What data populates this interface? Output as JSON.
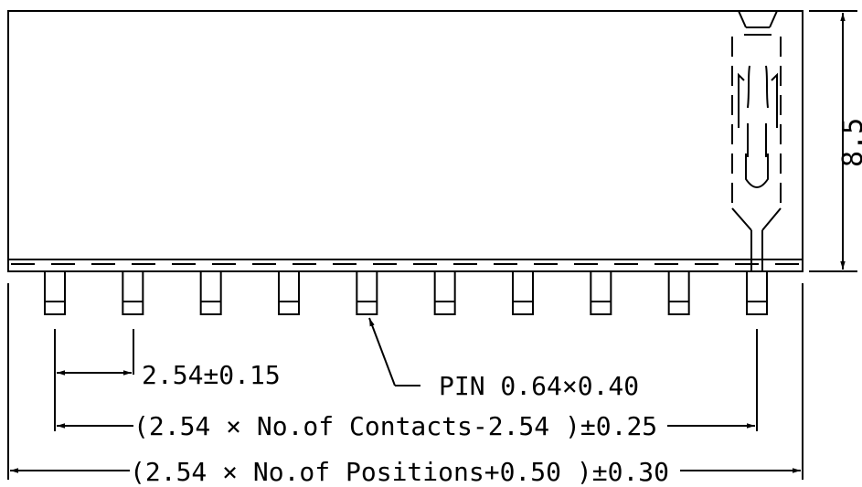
{
  "drawing": {
    "pin_count": 10,
    "colors": {
      "line": "#000000",
      "background": "#ffffff"
    }
  },
  "dimensions": {
    "height": "8.5",
    "pitch": "2.54±0.15",
    "pin": "PIN 0.64×0.40",
    "contacts_span": "(2.54 × No.of Contacts-2.54 )±0.25",
    "overall_length": "(2.54 × No.of Positions+0.50 )±0.30"
  }
}
